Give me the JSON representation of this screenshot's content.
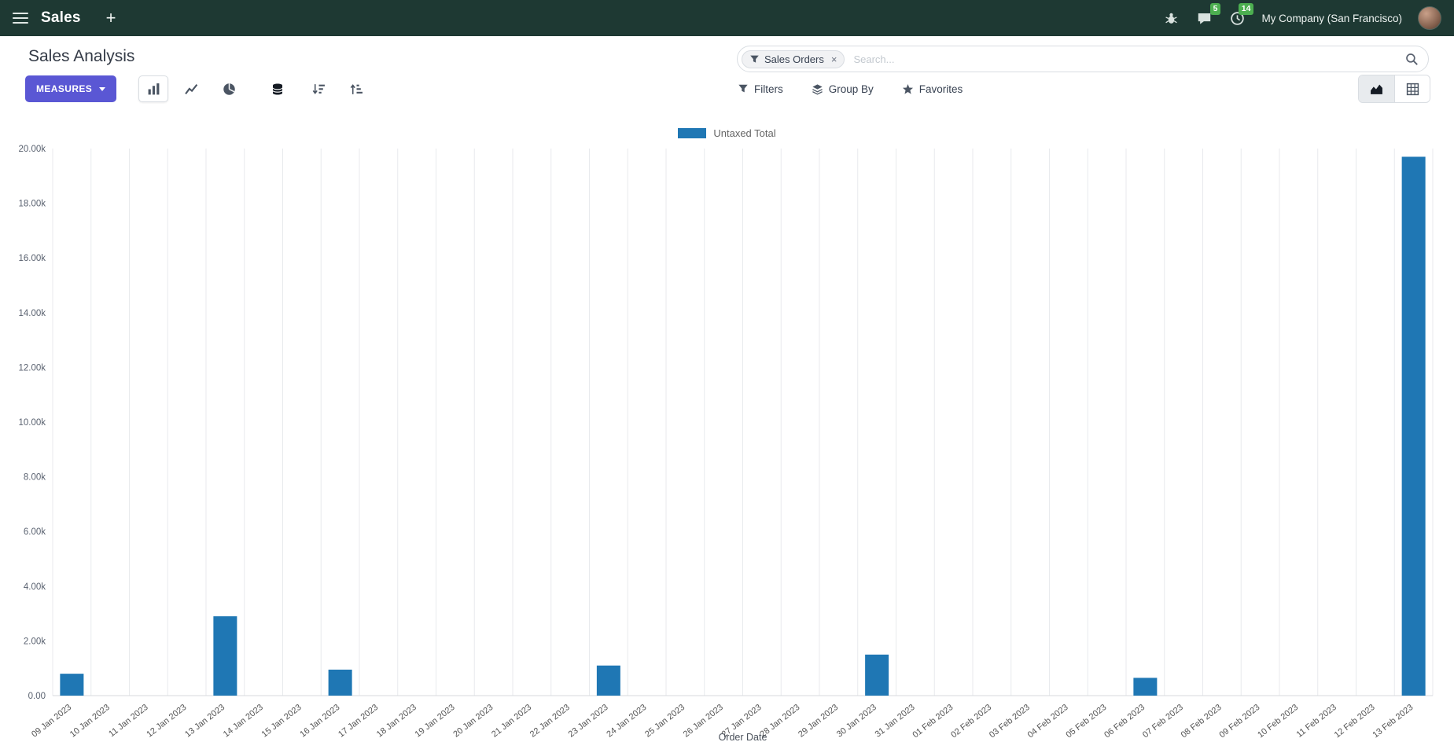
{
  "colors": {
    "topbar_bg": "#1e3933",
    "primary": "#5a57d4",
    "bar": "#1f77b4",
    "badge_green": "#4caf50"
  },
  "topbar": {
    "app_title": "Sales",
    "plus_label": "+",
    "chat_badge": "5",
    "activity_badge": "14",
    "company": "My Company (San Francisco)"
  },
  "control_panel": {
    "title": "Sales Analysis",
    "measures_label": "MEASURES",
    "filters_label": "Filters",
    "groupby_label": "Group By",
    "favorites_label": "Favorites",
    "search": {
      "facet_label": "Sales Orders",
      "remove_label": "×",
      "placeholder": "Search..."
    }
  },
  "chart_data": {
    "type": "bar",
    "title": "",
    "xlabel": "Order Date",
    "ylabel": "",
    "ylim": [
      0,
      20000
    ],
    "yticks": [
      "0.00",
      "2.00k",
      "4.00k",
      "6.00k",
      "8.00k",
      "10.00k",
      "12.00k",
      "14.00k",
      "16.00k",
      "18.00k",
      "20.00k"
    ],
    "grid": "vertical",
    "legend_position": "top-center",
    "categories": [
      "09 Jan 2023",
      "10 Jan 2023",
      "11 Jan 2023",
      "12 Jan 2023",
      "13 Jan 2023",
      "14 Jan 2023",
      "15 Jan 2023",
      "16 Jan 2023",
      "17 Jan 2023",
      "18 Jan 2023",
      "19 Jan 2023",
      "20 Jan 2023",
      "21 Jan 2023",
      "22 Jan 2023",
      "23 Jan 2023",
      "24 Jan 2023",
      "25 Jan 2023",
      "26 Jan 2023",
      "27 Jan 2023",
      "28 Jan 2023",
      "29 Jan 2023",
      "30 Jan 2023",
      "31 Jan 2023",
      "01 Feb 2023",
      "02 Feb 2023",
      "03 Feb 2023",
      "04 Feb 2023",
      "05 Feb 2023",
      "06 Feb 2023",
      "07 Feb 2023",
      "08 Feb 2023",
      "09 Feb 2023",
      "10 Feb 2023",
      "11 Feb 2023",
      "12 Feb 2023",
      "13 Feb 2023"
    ],
    "series": [
      {
        "name": "Untaxed Total",
        "color": "#1f77b4",
        "values": [
          800,
          0,
          0,
          0,
          2900,
          0,
          0,
          950,
          0,
          0,
          0,
          0,
          0,
          0,
          1100,
          0,
          0,
          0,
          0,
          0,
          0,
          1500,
          0,
          0,
          0,
          0,
          0,
          0,
          650,
          0,
          0,
          0,
          0,
          0,
          0,
          19700
        ]
      }
    ]
  }
}
